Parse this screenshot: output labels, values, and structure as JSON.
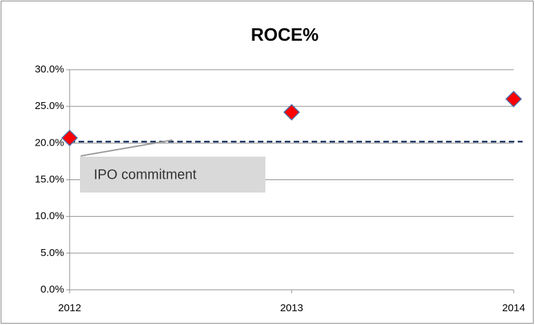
{
  "chart_data": {
    "type": "scatter",
    "title": "ROCE%",
    "x": [
      2012,
      2013,
      2014
    ],
    "series": [
      {
        "color": "#ff0000",
        "values": [
          20.7,
          24.2,
          26.0
        ]
      }
    ],
    "xlim": [
      2012,
      2014
    ],
    "xticks": [
      2012,
      2013,
      2014
    ],
    "ylim": [
      0,
      30
    ],
    "yticks": [
      {
        "value": 0,
        "label": "0.0%"
      },
      {
        "value": 5,
        "label": "5.0%"
      },
      {
        "value": 10,
        "label": "10.0%"
      },
      {
        "value": 15,
        "label": "15.0%"
      },
      {
        "value": 20,
        "label": "20.0%"
      },
      {
        "value": 25,
        "label": "25.0%"
      },
      {
        "value": 30,
        "label": "30.0%"
      }
    ],
    "grid": true,
    "reference_line": {
      "value": 20.2,
      "color": "#1f3864",
      "style": "dashed"
    },
    "annotation": {
      "text": "IPO commitment"
    }
  }
}
